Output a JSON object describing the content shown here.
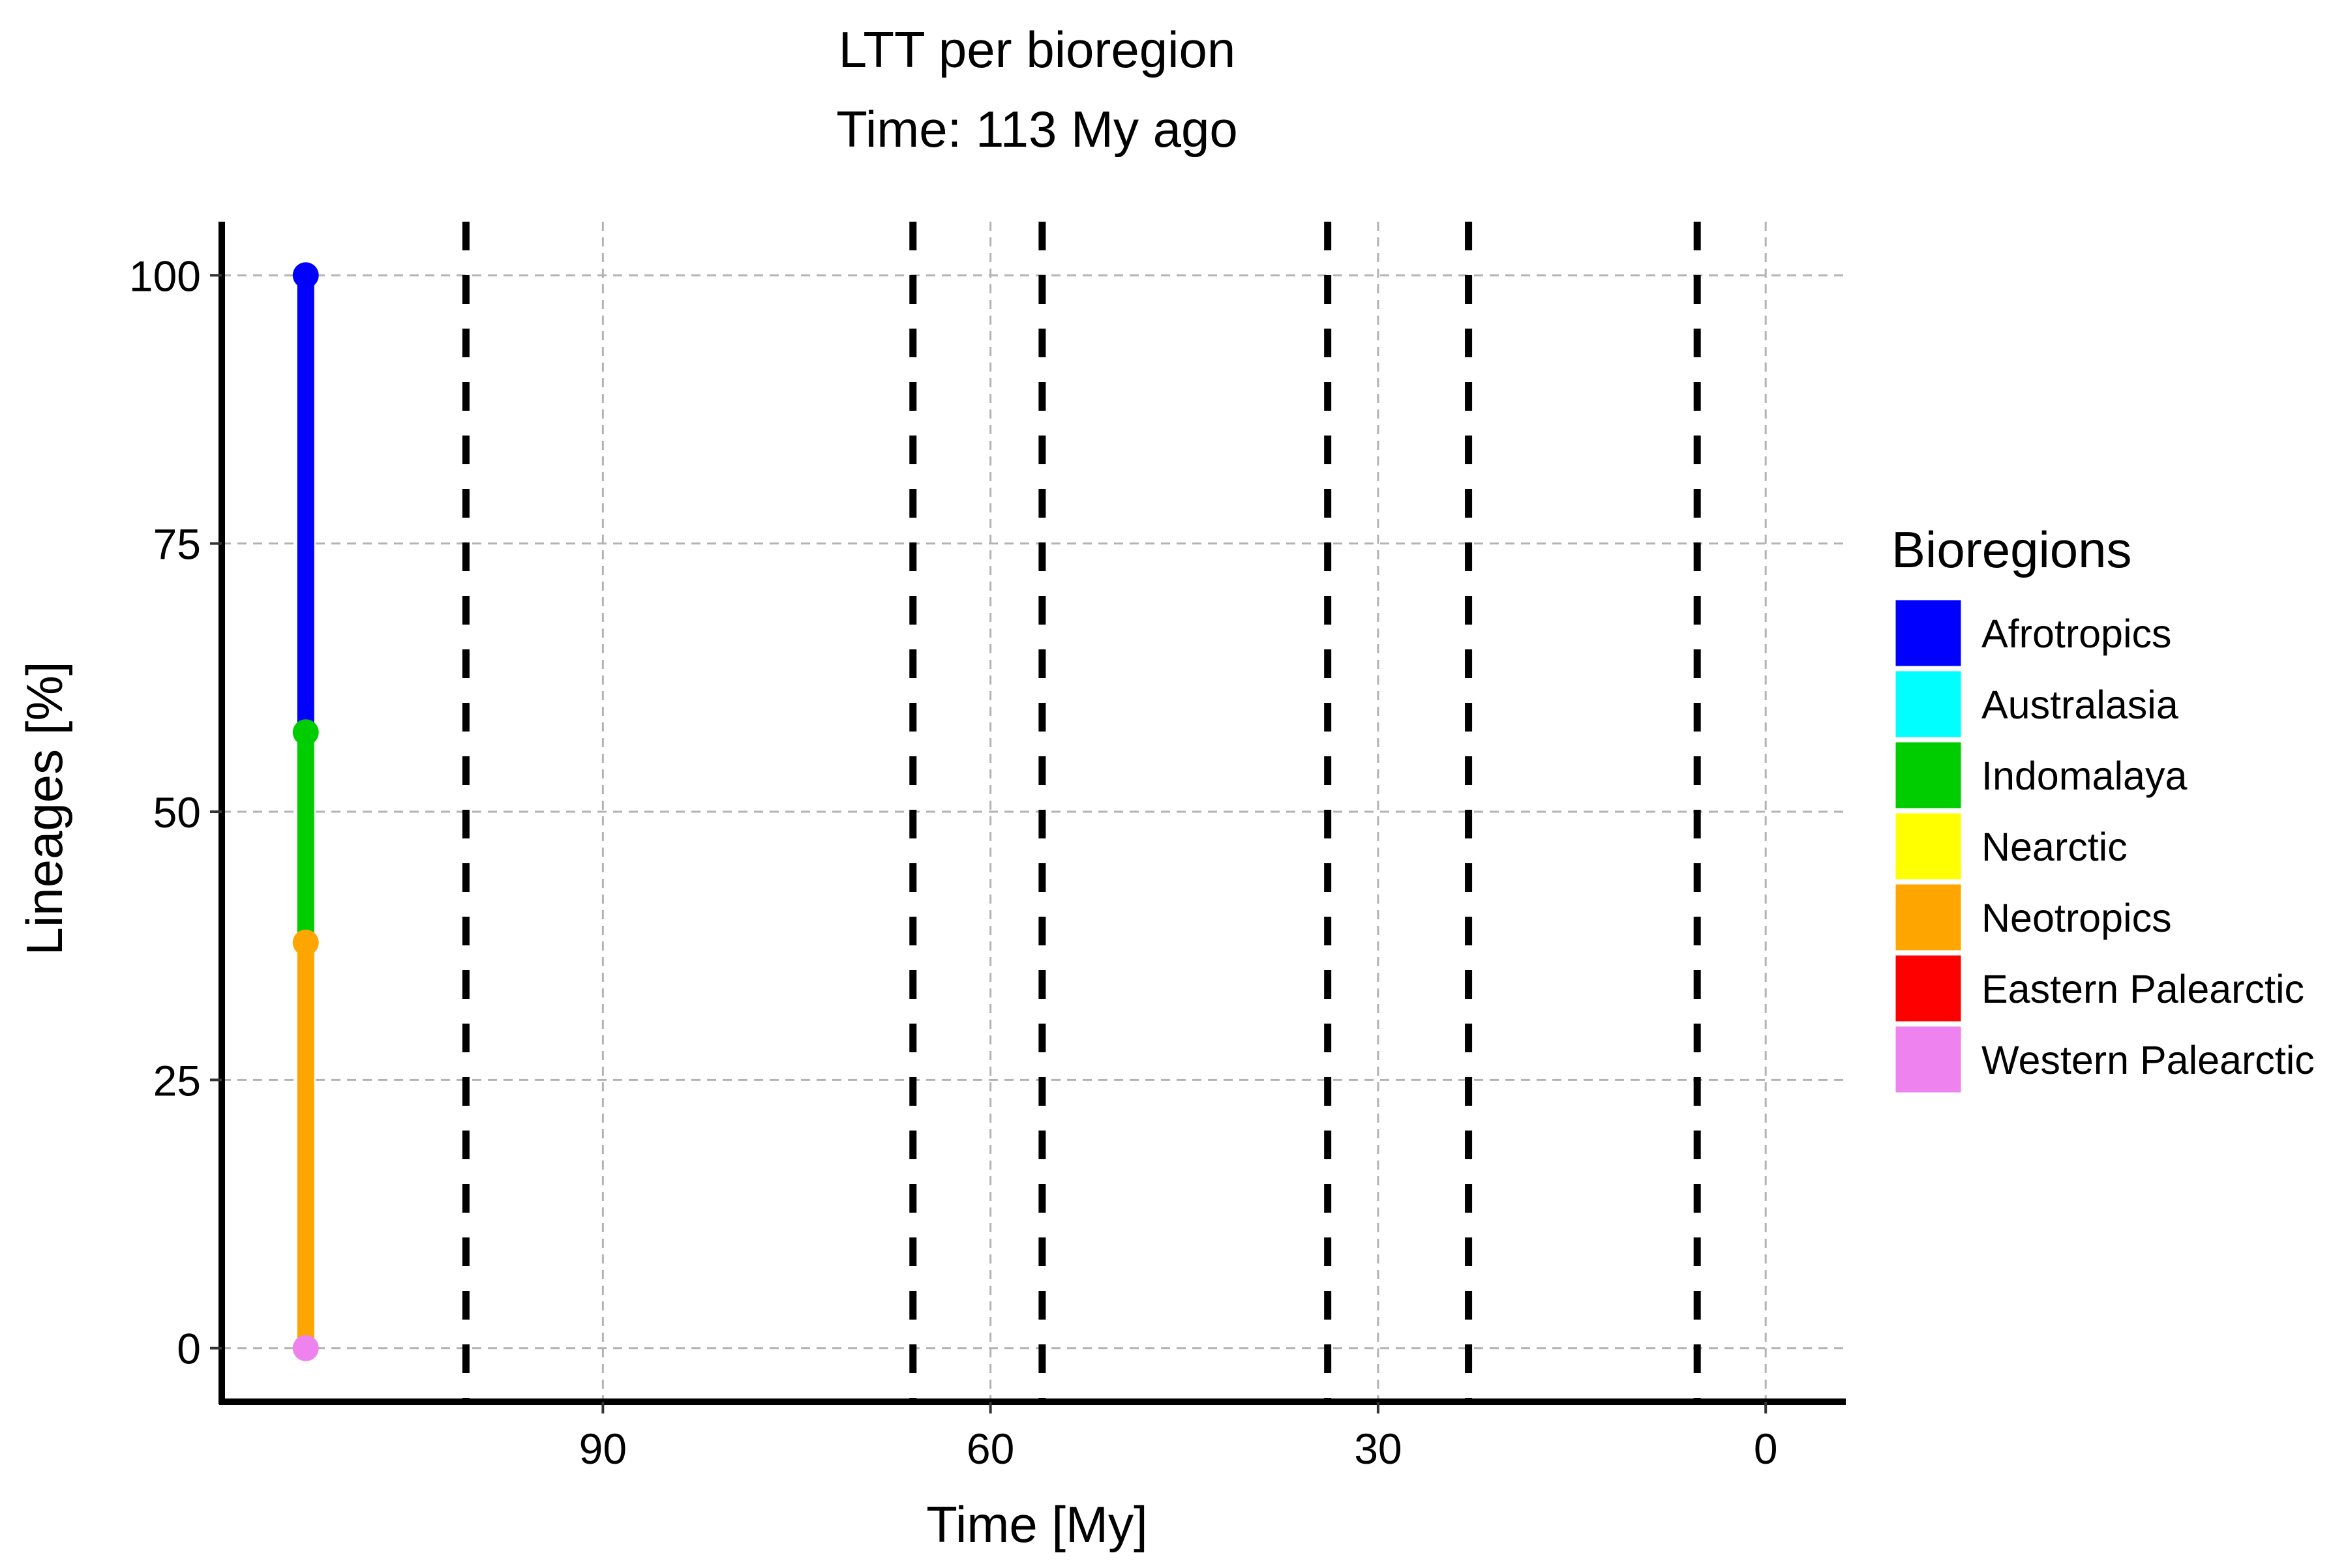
{
  "chart_data": {
    "type": "line",
    "title": "LTT per bioregion",
    "subtitle": "Time: 113 My ago",
    "xlabel": "Time  [My]",
    "ylabel": "Lineages  [%]",
    "x_reversed": true,
    "xlim": [
      119.5,
      -6.2
    ],
    "ylim": [
      -5,
      105
    ],
    "x_ticks": [
      90,
      60,
      30,
      0
    ],
    "y_ticks": [
      0,
      25,
      50,
      75,
      100
    ],
    "grid": true,
    "legend_position": "right",
    "reference_lines": [
      100.6,
      66,
      56,
      33.9,
      23,
      5.3
    ],
    "series": [
      {
        "name": "Western Palearctic",
        "color": "#EE82EE",
        "time": 113,
        "lower": 0,
        "upper": 0
      },
      {
        "name": "Eastern Palearctic",
        "color": "#FF0000",
        "time": 113,
        "lower": 0,
        "upper": 0
      },
      {
        "name": "Neotropics",
        "color": "#FFA500",
        "time": 113,
        "lower": 0,
        "upper": 37.8
      },
      {
        "name": "Nearctic",
        "color": "#FFFF00",
        "time": 113,
        "lower": 37.8,
        "upper": 37.8
      },
      {
        "name": "Indomalaya",
        "color": "#00CD00",
        "time": 113,
        "lower": 37.8,
        "upper": 57.4
      },
      {
        "name": "Australasia",
        "color": "#00FFFF",
        "time": 113,
        "lower": 57.4,
        "upper": 57.4
      },
      {
        "name": "Afrotropics",
        "color": "#0000FF",
        "time": 113,
        "lower": 57.4,
        "upper": 100
      }
    ],
    "legend": {
      "title": "Bioregions",
      "items": [
        {
          "label": "Afrotropics",
          "color": "#0000FF"
        },
        {
          "label": "Australasia",
          "color": "#00FFFF"
        },
        {
          "label": "Indomalaya",
          "color": "#00CD00"
        },
        {
          "label": "Nearctic",
          "color": "#FFFF00"
        },
        {
          "label": "Neotropics",
          "color": "#FFA500"
        },
        {
          "label": "Eastern Palearctic",
          "color": "#FF0000"
        },
        {
          "label": "Western Palearctic",
          "color": "#EE82EE"
        }
      ]
    }
  }
}
